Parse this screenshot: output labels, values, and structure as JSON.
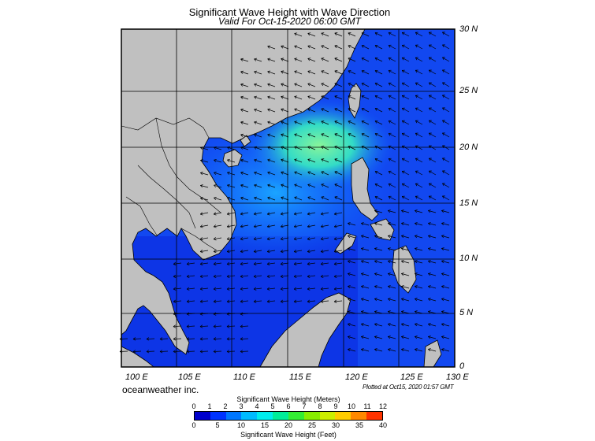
{
  "title": "Significant Wave Height with Wave Direction",
  "subtitle": "Valid For Oct-15-2020 06:00 GMT",
  "lat_labels": [
    "30 N",
    "25 N",
    "20 N",
    "15 N",
    "10 N",
    "5 N",
    "0"
  ],
  "lon_labels": [
    "100 E",
    "105 E",
    "110 E",
    "115 E",
    "120 E",
    "125 E",
    "130 E"
  ],
  "brand": "oceanweather inc.",
  "plotted": "Plotted at Oct15, 2020 01:57 GMT",
  "colorbar": {
    "meters_title": "Significant Wave Height (Meters)",
    "feet_title": "Significant Wave Height (Feet)",
    "meters_ticks": [
      "0",
      "1",
      "2",
      "3",
      "4",
      "5",
      "6",
      "7",
      "8",
      "9",
      "10",
      "11",
      "12"
    ],
    "feet_ticks": [
      "0",
      "5",
      "10",
      "15",
      "20",
      "25",
      "30",
      "35",
      "40"
    ],
    "colors": [
      "#0000cc",
      "#0033ff",
      "#0077ff",
      "#00bbff",
      "#00eeee",
      "#00ee99",
      "#33ee33",
      "#88ee00",
      "#ccee00",
      "#ffcc00",
      "#ff8800",
      "#ff3300"
    ]
  },
  "colors": {
    "land": "#c0c0c0",
    "sea_low": "#1030ee",
    "sea_high": "#7ff0a0"
  }
}
